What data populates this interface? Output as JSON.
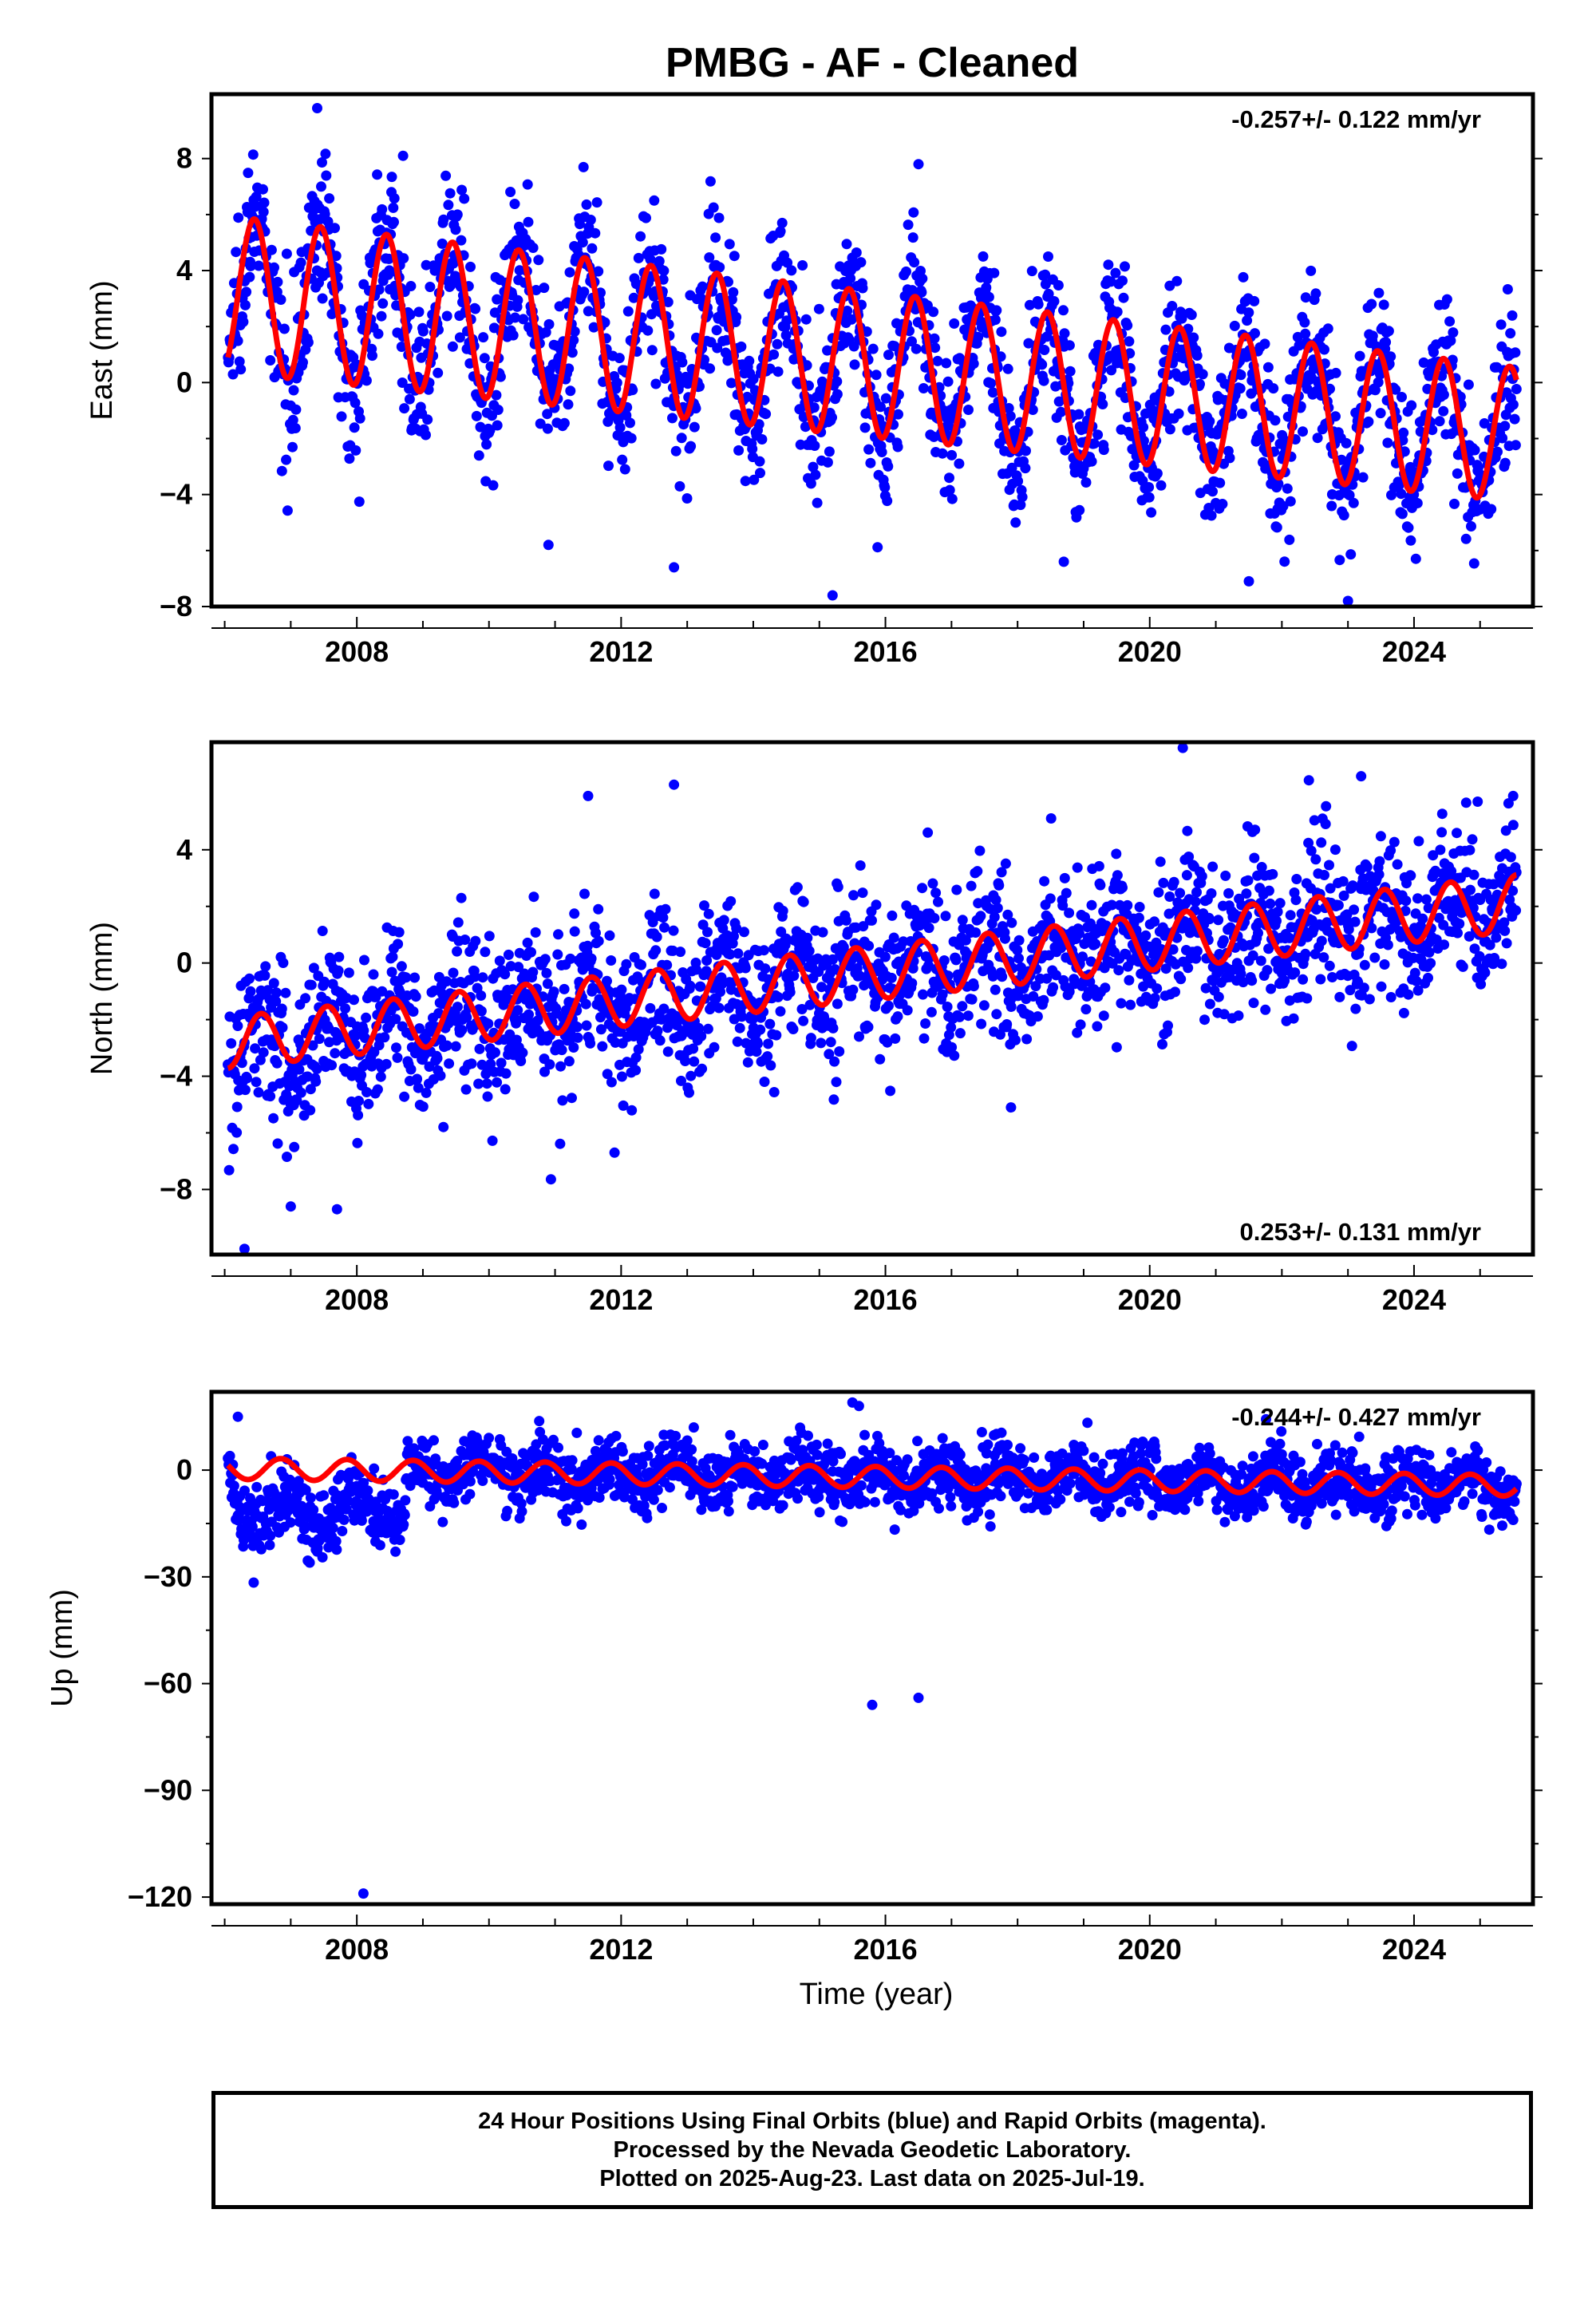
{
  "title": "PMBG  - AF - Cleaned",
  "footer": {
    "line1": "24 Hour Positions Using Final Orbits (blue) and Rapid Orbits (magenta).",
    "line2": "Processed by the Nevada Geodetic Laboratory.",
    "line3": "Plotted on 2025-Aug-23. Last data on 2025-Jul-19."
  },
  "colors": {
    "observations": "#0000ff",
    "model": "#ff0000",
    "axes": "#000000"
  },
  "chart_data": [
    {
      "type": "scatter",
      "id": "east",
      "ylabel": "East (mm)",
      "rate_label": "-0.257+/- 0.122 mm/yr",
      "rate_position": "top-right",
      "xlim": [
        2005.8,
        2025.8
      ],
      "ylim": [
        -8,
        10.3
      ],
      "x_ticks": [
        2008,
        2012,
        2016,
        2020,
        2024
      ],
      "x_tick_labels": [
        "2008",
        "2012",
        "2016",
        "2020",
        "2024"
      ],
      "y_ticks": [
        -8,
        -4,
        0,
        4,
        8
      ],
      "y_tick_labels": [
        "−8",
        "−4",
        "0",
        "4",
        "8"
      ],
      "series": [
        {
          "kind": "points",
          "color": "#0000ff",
          "x_range": [
            2006.05,
            2025.55
          ],
          "model": {
            "ref_year": 2016.0,
            "offset": 0.6,
            "rate_mm_yr": -0.257,
            "annual_amp_early": 2.8,
            "annual_amp_late": 2.4,
            "phase_peak": 0.45
          },
          "scatter_sigma": 1.35,
          "outliers": [
            [
              2007.4,
              9.8
            ],
            [
              2008.7,
              8.1
            ],
            [
              2012.5,
              6.5
            ],
            [
              2016.5,
              7.8
            ],
            [
              2015.2,
              -7.6
            ],
            [
              2012.8,
              -6.6
            ],
            [
              2023.0,
              -7.8
            ],
            [
              2021.5,
              -7.1
            ],
            [
              2018.7,
              -6.4
            ],
            [
              2010.9,
              -5.8
            ]
          ]
        },
        {
          "kind": "line",
          "color": "#ff0000",
          "label": "model"
        }
      ]
    },
    {
      "type": "scatter",
      "id": "north",
      "ylabel": "North (mm)",
      "rate_label": "0.253+/- 0.131 mm/yr",
      "rate_position": "bottom-right",
      "xlim": [
        2005.8,
        2025.8
      ],
      "ylim": [
        -10.3,
        7.8
      ],
      "x_ticks": [
        2008,
        2012,
        2016,
        2020,
        2024
      ],
      "x_tick_labels": [
        "2008",
        "2012",
        "2016",
        "2020",
        "2024"
      ],
      "y_ticks": [
        -8,
        -4,
        0,
        4
      ],
      "y_tick_labels": [
        "−8",
        "−4",
        "0",
        "4"
      ],
      "series": [
        {
          "kind": "points",
          "color": "#0000ff",
          "x_range": [
            2006.05,
            2025.55
          ],
          "model": {
            "ref_year": 2016.0,
            "offset": -0.3,
            "rate_mm_yr": 0.253,
            "annual_amp_early": 0.9,
            "annual_amp_late": 1.0,
            "phase_peak": 0.55
          },
          "scatter_sigma": 1.35,
          "outliers": [
            [
              2006.3,
              -10.1
            ],
            [
              2007.0,
              -8.6
            ],
            [
              2007.7,
              -8.7
            ],
            [
              2020.5,
              7.6
            ],
            [
              2012.8,
              6.3
            ],
            [
              2023.2,
              6.6
            ],
            [
              2011.5,
              5.9
            ],
            [
              2025.5,
              5.9
            ],
            [
              2011.9,
              -6.7
            ],
            [
              2017.9,
              -5.1
            ]
          ]
        },
        {
          "kind": "line",
          "color": "#ff0000",
          "label": "model"
        }
      ]
    },
    {
      "type": "scatter",
      "id": "up",
      "ylabel": "Up (mm)",
      "xlabel": "Time (year)",
      "rate_label": "-0.244+/- 0.427 mm/yr",
      "rate_position": "top-right",
      "xlim": [
        2005.8,
        2025.8
      ],
      "ylim": [
        -122,
        22
      ],
      "x_ticks": [
        2008,
        2012,
        2016,
        2020,
        2024
      ],
      "x_tick_labels": [
        "2008",
        "2012",
        "2016",
        "2020",
        "2024"
      ],
      "y_ticks": [
        -120,
        -90,
        -60,
        -30,
        0
      ],
      "y_tick_labels": [
        "−120",
        "−90",
        "−60",
        "−30",
        "0"
      ],
      "series": [
        {
          "kind": "points",
          "color": "#0000ff",
          "x_range": [
            2006.05,
            2025.55
          ],
          "model": {
            "ref_year": 2016.0,
            "offset": -2.0,
            "rate_mm_yr": -0.244,
            "annual_amp_early": 3.0,
            "annual_amp_late": 3.0,
            "phase_peak": 0.85
          },
          "scatter_sigma": 4.5,
          "offset_epoch": {
            "start": 2006.1,
            "end": 2008.75,
            "shift": -14
          },
          "outliers": [
            [
              2008.1,
              -119
            ],
            [
              2015.8,
              -66
            ],
            [
              2016.5,
              -64
            ],
            [
              2006.2,
              15
            ],
            [
              2015.5,
              19
            ],
            [
              2015.6,
              18
            ],
            [
              2013.1,
              12
            ],
            [
              2025.5,
              -14
            ]
          ]
        },
        {
          "kind": "line",
          "color": "#ff0000",
          "label": "model"
        }
      ]
    }
  ]
}
